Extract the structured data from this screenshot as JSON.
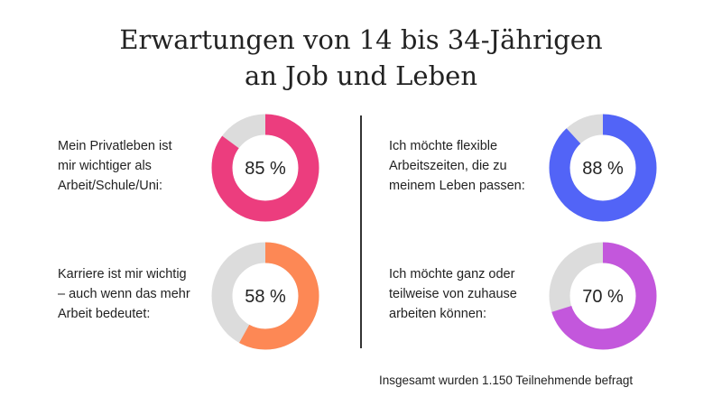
{
  "title_line1": "Erwartungen von 14 bis 34-Jährigen",
  "title_line2": "an Job und Leben",
  "footnote": "Insgesamt wurden 1.150 Teilnehmende befragt",
  "colors": {
    "track": "#dcdcdc",
    "pink": "#ec3d7e",
    "orange": "#fd8855",
    "blue": "#5264f7",
    "purple": "#c357dc"
  },
  "chart_data": [
    {
      "type": "pie",
      "label": "Mein Privatleben ist\nmir wichtiger als\nArbeit/Schule/Uni:",
      "value": 85,
      "value_label": "85 %",
      "color": "#ec3d7e"
    },
    {
      "type": "pie",
      "label": "Karriere ist mir wichtig\n– auch wenn das mehr\nArbeit bedeutet:",
      "value": 58,
      "value_label": "58 %",
      "color": "#fd8855"
    },
    {
      "type": "pie",
      "label": "Ich möchte flexible\nArbeitszeiten, die zu\nmeinem Leben passen:",
      "value": 88,
      "value_label": "88 %",
      "color": "#5264f7"
    },
    {
      "type": "pie",
      "label": "Ich möchte ganz oder\nteilweise von zuhause\narbeiten können:",
      "value": 70,
      "value_label": "70 %",
      "color": "#c357dc"
    }
  ]
}
